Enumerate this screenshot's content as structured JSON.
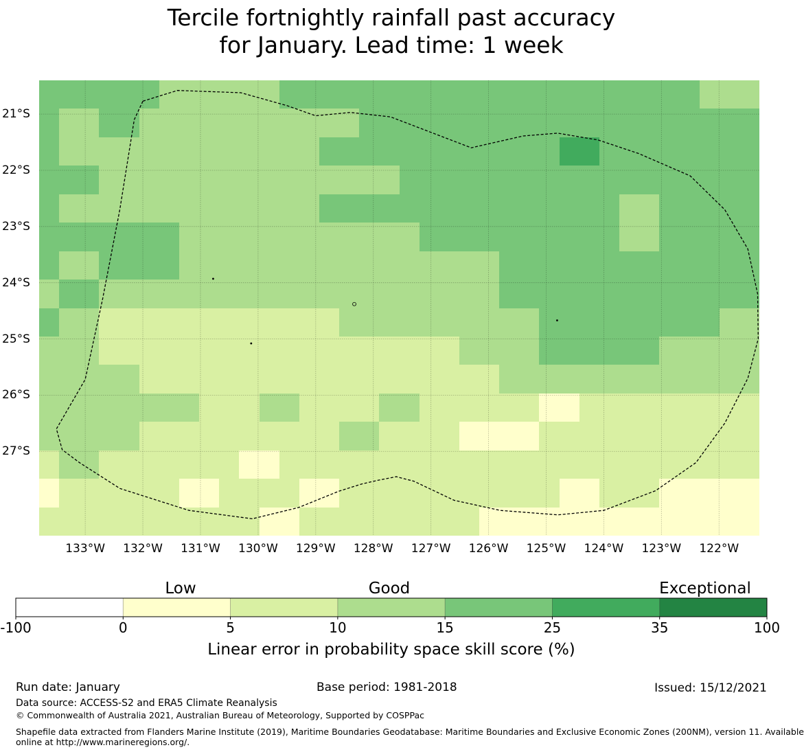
{
  "title_line1": "Tercile fortnightly rainfall past accuracy",
  "title_line2": "for January. Lead time: 1 week",
  "map": {
    "lon_range": [
      -133.8,
      -121.3
    ],
    "lat_range": [
      -28.5,
      -20.4
    ],
    "cell_size_deg": 0.8181818,
    "lat_labels": [
      "21°S",
      "22°S",
      "23°S",
      "24°S",
      "25°S",
      "26°S",
      "27°S"
    ],
    "lat_values": [
      -21,
      -22,
      -23,
      -24,
      -25,
      -26,
      -27
    ],
    "lon_labels": [
      "133°W",
      "132°W",
      "131°W",
      "130°W",
      "129°W",
      "128°W",
      "127°W",
      "126°W",
      "125°W",
      "124°W",
      "123°W",
      "122°W"
    ],
    "lon_values": [
      -133,
      -132,
      -131,
      -130,
      -129,
      -128,
      -127,
      -126,
      -125,
      -124,
      -123,
      -122
    ],
    "grid_cells_note": "rows top-to-bottom, columns left-to-right; value = colour class index (1=0-5, 2=5-10, 3=10-15, 4=15-25, 5=25-35)",
    "grid_cells": [
      [
        4,
        4,
        4,
        4,
        4,
        4,
        3,
        3,
        3,
        3,
        3,
        3,
        4,
        4,
        4,
        4,
        4,
        4,
        4,
        4,
        4,
        4,
        4,
        4,
        4,
        4,
        4,
        4,
        4,
        4,
        4,
        4,
        4,
        3,
        3,
        3
      ],
      [
        4,
        3,
        3,
        4,
        4,
        3,
        3,
        3,
        3,
        3,
        3,
        3,
        3,
        3,
        3,
        3,
        4,
        4,
        4,
        4,
        4,
        4,
        4,
        4,
        4,
        4,
        4,
        4,
        4,
        4,
        4,
        4,
        4,
        4,
        4,
        4
      ],
      [
        4,
        3,
        3,
        3,
        3,
        3,
        3,
        3,
        3,
        3,
        3,
        3,
        3,
        3,
        4,
        4,
        4,
        4,
        4,
        4,
        4,
        4,
        4,
        4,
        4,
        4,
        5,
        5,
        4,
        4,
        4,
        4,
        4,
        4,
        4,
        4
      ],
      [
        4,
        4,
        4,
        3,
        3,
        3,
        3,
        3,
        3,
        3,
        3,
        3,
        3,
        3,
        3,
        3,
        3,
        3,
        4,
        4,
        4,
        4,
        4,
        4,
        4,
        4,
        4,
        4,
        4,
        4,
        4,
        4,
        4,
        4,
        4,
        4
      ],
      [
        4,
        3,
        3,
        3,
        3,
        3,
        3,
        3,
        3,
        3,
        3,
        3,
        3,
        3,
        4,
        4,
        4,
        4,
        4,
        4,
        4,
        4,
        4,
        4,
        4,
        4,
        4,
        4,
        4,
        3,
        3,
        4,
        4,
        4,
        4,
        4
      ],
      [
        4,
        4,
        4,
        4,
        4,
        4,
        4,
        3,
        3,
        3,
        3,
        3,
        3,
        3,
        3,
        3,
        3,
        3,
        3,
        4,
        4,
        4,
        4,
        4,
        4,
        4,
        4,
        4,
        4,
        3,
        3,
        4,
        4,
        4,
        4,
        4
      ],
      [
        4,
        3,
        3,
        4,
        4,
        4,
        4,
        3,
        3,
        3,
        3,
        3,
        3,
        3,
        3,
        3,
        3,
        3,
        3,
        3,
        3,
        3,
        3,
        4,
        4,
        4,
        4,
        4,
        4,
        4,
        4,
        4,
        4,
        4,
        4,
        4
      ],
      [
        3,
        4,
        4,
        3,
        3,
        3,
        3,
        3,
        3,
        3,
        3,
        3,
        3,
        3,
        3,
        3,
        3,
        3,
        3,
        3,
        3,
        3,
        3,
        4,
        4,
        4,
        4,
        4,
        4,
        4,
        4,
        4,
        4,
        4,
        4,
        4
      ],
      [
        4,
        3,
        3,
        2,
        2,
        2,
        2,
        2,
        2,
        2,
        2,
        2,
        2,
        2,
        2,
        3,
        3,
        3,
        3,
        3,
        3,
        3,
        3,
        3,
        3,
        4,
        4,
        4,
        4,
        4,
        4,
        4,
        4,
        4,
        3,
        3
      ],
      [
        3,
        3,
        3,
        2,
        2,
        2,
        2,
        2,
        2,
        2,
        2,
        2,
        2,
        2,
        2,
        2,
        2,
        2,
        2,
        2,
        2,
        3,
        3,
        3,
        3,
        4,
        4,
        4,
        4,
        4,
        4,
        3,
        3,
        3,
        3,
        3
      ],
      [
        3,
        3,
        3,
        3,
        3,
        2,
        2,
        2,
        2,
        2,
        2,
        2,
        2,
        2,
        2,
        2,
        2,
        2,
        2,
        2,
        2,
        2,
        2,
        3,
        3,
        3,
        3,
        3,
        3,
        3,
        3,
        3,
        3,
        3,
        3,
        3
      ],
      [
        3,
        3,
        3,
        3,
        3,
        3,
        3,
        3,
        2,
        2,
        2,
        3,
        3,
        2,
        2,
        2,
        2,
        3,
        3,
        2,
        2,
        2,
        2,
        2,
        2,
        1,
        1,
        2,
        2,
        2,
        2,
        2,
        2,
        2,
        2,
        2
      ],
      [
        3,
        3,
        3,
        3,
        3,
        2,
        2,
        2,
        2,
        2,
        2,
        2,
        2,
        2,
        2,
        3,
        3,
        2,
        2,
        2,
        2,
        1,
        1,
        1,
        1,
        2,
        2,
        2,
        2,
        2,
        2,
        2,
        2,
        2,
        2,
        2
      ],
      [
        2,
        3,
        3,
        2,
        2,
        2,
        2,
        2,
        2,
        2,
        1,
        1,
        2,
        2,
        2,
        2,
        2,
        2,
        2,
        2,
        2,
        2,
        2,
        2,
        2,
        2,
        2,
        2,
        2,
        2,
        2,
        2,
        2,
        2,
        2,
        2
      ],
      [
        1,
        2,
        2,
        2,
        2,
        2,
        2,
        1,
        1,
        2,
        2,
        2,
        2,
        1,
        1,
        2,
        2,
        2,
        2,
        2,
        2,
        2,
        2,
        2,
        2,
        2,
        1,
        1,
        2,
        2,
        2,
        1,
        1,
        1,
        1,
        1
      ],
      [
        2,
        2,
        2,
        2,
        2,
        2,
        2,
        2,
        2,
        2,
        2,
        1,
        1,
        2,
        2,
        2,
        2,
        2,
        2,
        2,
        2,
        2,
        1,
        1,
        1,
        1,
        1,
        1,
        1,
        1,
        1,
        1,
        1,
        1,
        1,
        1
      ]
    ],
    "eez_outline_lonlat": [
      [
        -132.0,
        -20.77
      ],
      [
        -131.4,
        -20.58
      ],
      [
        -130.3,
        -20.62
      ],
      [
        -129.5,
        -20.85
      ],
      [
        -129.0,
        -21.03
      ],
      [
        -128.4,
        -20.97
      ],
      [
        -127.7,
        -21.05
      ],
      [
        -126.3,
        -21.6
      ],
      [
        -125.4,
        -21.39
      ],
      [
        -124.8,
        -21.34
      ],
      [
        -124.1,
        -21.46
      ],
      [
        -123.4,
        -21.7
      ],
      [
        -122.5,
        -22.1
      ],
      [
        -121.9,
        -22.7
      ],
      [
        -121.5,
        -23.4
      ],
      [
        -121.33,
        -24.2
      ],
      [
        -121.32,
        -25.0
      ],
      [
        -121.5,
        -25.7
      ],
      [
        -121.9,
        -26.5
      ],
      [
        -122.4,
        -27.2
      ],
      [
        -123.1,
        -27.7
      ],
      [
        -124.0,
        -28.05
      ],
      [
        -124.8,
        -28.13
      ],
      [
        -125.8,
        -28.05
      ],
      [
        -126.6,
        -27.87
      ],
      [
        -127.3,
        -27.53
      ],
      [
        -127.6,
        -27.45
      ],
      [
        -127.9,
        -27.51
      ],
      [
        -128.2,
        -27.58
      ],
      [
        -128.6,
        -27.71
      ],
      [
        -129.3,
        -28.0
      ],
      [
        -130.1,
        -28.2
      ],
      [
        -131.2,
        -28.05
      ],
      [
        -132.4,
        -27.66
      ],
      [
        -133.1,
        -27.2
      ],
      [
        -133.4,
        -26.97
      ],
      [
        -133.5,
        -26.6
      ],
      [
        -133.0,
        -25.72
      ],
      [
        -132.7,
        -24.3
      ],
      [
        -132.4,
        -22.7
      ],
      [
        -132.15,
        -21.1
      ],
      [
        -132.0,
        -20.77
      ]
    ],
    "islands_lonlat": [
      [
        -128.33,
        -24.38
      ],
      [
        -124.81,
        -24.67
      ],
      [
        -130.78,
        -23.93
      ],
      [
        -130.12,
        -25.08
      ]
    ]
  },
  "colorbar": {
    "categories": [
      "Low",
      "Good",
      "Exceptional"
    ],
    "ticks": [
      "-100",
      "0",
      "5",
      "10",
      "15",
      "25",
      "35",
      "100"
    ],
    "colors": [
      "#ffffff",
      "#ffffcc",
      "#d9f0a3",
      "#addd8e",
      "#78c679",
      "#41ab5d",
      "#238443"
    ],
    "label": "Linear error in probability space skill score (%)"
  },
  "footer": {
    "run_date": "Run date: January",
    "base_period": "Base period: 1981-2018",
    "issued": "Issued: 15/12/2021",
    "data_source": "Data source: ACCESS-S2 and ERA5 Climate Reanalysis",
    "copyright": "© Commonwealth of Australia 2021, Australian Bureau of Meteorology, Supported by COSPPac",
    "shapefile_line1": "Shapefile data extracted from Flanders Marine Institute (2019), Maritime Boundaries Geodatabase: Maritime Boundaries and Exclusive Economic Zones (200NM), version 11. Available",
    "shapefile_line2": "online at http://www.marineregions.org/."
  }
}
